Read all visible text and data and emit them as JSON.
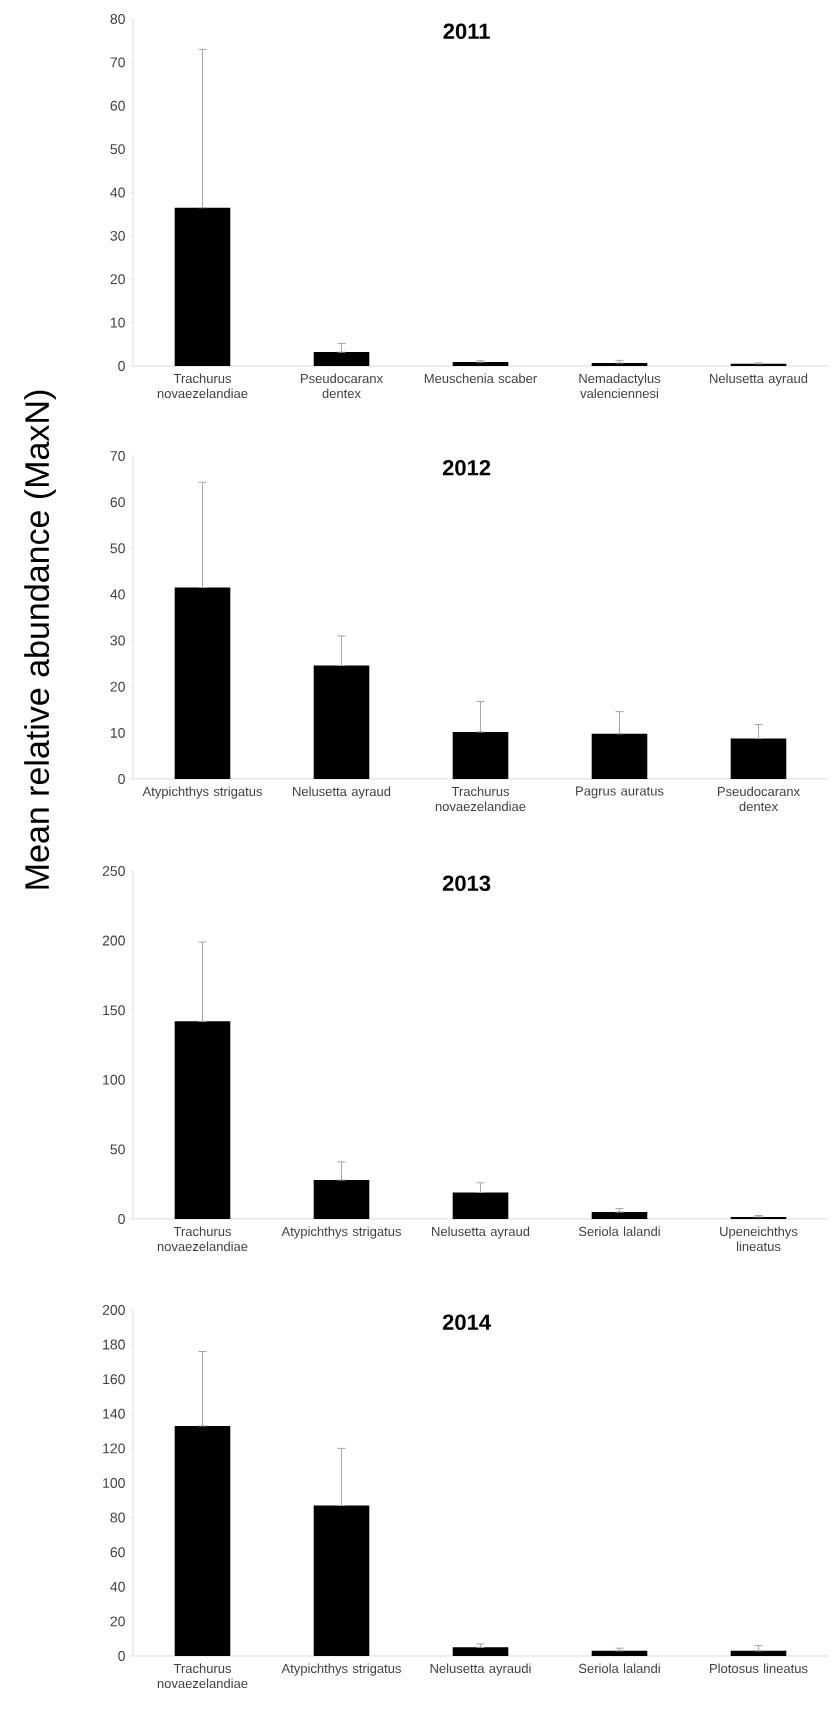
{
  "chart_data": [
    {
      "type": "bar",
      "title": "2011",
      "ylabel": "Mean relative abundance (MaxN)",
      "categories": [
        "Trachurus novaezelandiae",
        "Pseudocaranx dentex",
        "Meuschenia scaber",
        "Nemadactylus valenciennesi",
        "Nelusetta ayraud"
      ],
      "values": [
        36.5,
        3.2,
        0.9,
        0.7,
        0.5
      ],
      "errors": [
        [
          36.5,
          73
        ],
        [
          3.2,
          5.2
        ],
        [
          0.9,
          1.2
        ],
        [
          0.7,
          1.3
        ],
        [
          0.5,
          0.7
        ]
      ],
      "color": "#000000",
      "ylim": [
        0,
        80
      ],
      "yticks": [
        0,
        10,
        20,
        30,
        40,
        50,
        60,
        70,
        80
      ],
      "grid": false
    },
    {
      "type": "bar",
      "title": "2012",
      "categories": [
        "Atypichthys strigatus",
        "Nelusetta ayraud",
        "Trachurus novaezelandiae",
        "Pagrus auratus",
        "Pseudocaranx dentex"
      ],
      "values": [
        41.5,
        24.6,
        10.2,
        9.8,
        8.8
      ],
      "errors": [
        [
          41.5,
          64.3
        ],
        [
          24.6,
          31
        ],
        [
          10.2,
          16.8
        ],
        [
          9.8,
          14.6
        ],
        [
          8.8,
          11.8
        ]
      ],
      "color": "#000000",
      "ylim": [
        0,
        70
      ],
      "yticks": [
        0,
        10,
        20,
        30,
        40,
        50,
        60,
        70
      ],
      "grid": false
    },
    {
      "type": "bar",
      "title": "2013",
      "categories": [
        "Trachurus novaezelandiae",
        "Atypichthys strigatus",
        "Nelusetta ayraud",
        "Seriola lalandi",
        "Upeneichthys lineatus"
      ],
      "values": [
        142,
        28,
        19,
        5,
        1.5
      ],
      "errors": [
        [
          142,
          199
        ],
        [
          28,
          41
        ],
        [
          19,
          26
        ],
        [
          5,
          7.5
        ],
        [
          1.5,
          2.5
        ]
      ],
      "color": "#000000",
      "ylim": [
        0,
        250
      ],
      "yticks": [
        0,
        50,
        100,
        150,
        200,
        250
      ],
      "grid": false
    },
    {
      "type": "bar",
      "title": "2014",
      "categories": [
        "Trachurus novaezelandiae",
        "Atypichthys strigatus",
        "Nelusetta ayraudi",
        "Seriola lalandi",
        "Plotosus lineatus"
      ],
      "values": [
        133,
        87,
        5,
        3,
        3
      ],
      "errors": [
        [
          133,
          176
        ],
        [
          87,
          120
        ],
        [
          5,
          7
        ],
        [
          3,
          4.5
        ],
        [
          3,
          6
        ]
      ],
      "color": "#000000",
      "ylim": [
        0,
        200
      ],
      "yticks": [
        0,
        20,
        40,
        60,
        80,
        100,
        120,
        140,
        160,
        180,
        200
      ],
      "grid": false
    }
  ]
}
